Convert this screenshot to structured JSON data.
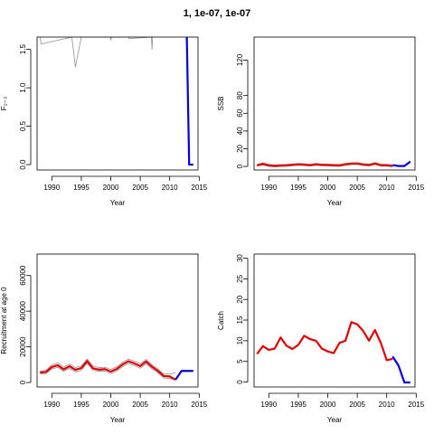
{
  "title": "1, 1e-07, 1e-07",
  "colors": {
    "estimate": "#e00000",
    "projection": "#0000e0",
    "bands": "#909090"
  },
  "chart_data": [
    {
      "id": "F",
      "type": "line",
      "xlabel": "Year",
      "ylabel": "F₂₋₃",
      "xlim": [
        1987.5,
        2014.8
      ],
      "ylim": [
        -0.07,
        1.66
      ],
      "xticks": [
        1990,
        1995,
        2000,
        2005,
        2010,
        2015
      ],
      "yticks": [
        0.0,
        0.5,
        1.0,
        1.5
      ],
      "ytick_labels": [
        "0.0",
        "0.5",
        "1.0",
        "1.5"
      ],
      "series": [
        {
          "role": "band-upper",
          "x": [
            1988,
            1988.2,
            1993.4,
            1994,
            1995,
            1999.9,
            2000,
            2000.2,
            2003,
            2003.1,
            2006.9,
            2007,
            2007.1
          ],
          "y": [
            1.66,
            1.57,
            1.66,
            1.27,
            1.66,
            1.66,
            1.62,
            1.66,
            1.66,
            1.64,
            1.66,
            1.5,
            1.66
          ]
        },
        {
          "role": "projection",
          "x": [
            2012.9,
            2013.3,
            2014
          ],
          "y": [
            1.66,
            0.0,
            0.0
          ]
        }
      ]
    },
    {
      "id": "SSB",
      "type": "line",
      "xlabel": "Year",
      "ylabel": "SSB",
      "xlim": [
        1987.5,
        2014.8
      ],
      "ylim": [
        -4,
        146
      ],
      "xticks": [
        1990,
        1995,
        2000,
        2005,
        2010,
        2015
      ],
      "yticks": [
        0,
        20,
        40,
        60,
        80,
        120
      ],
      "ytick_labels": [
        "0",
        "20",
        "40",
        "60",
        "80",
        "120"
      ],
      "series": [
        {
          "role": "band-upper",
          "x": [
            1988,
            1989,
            1990,
            1991,
            1992,
            1993,
            1994,
            1995,
            1996,
            1997,
            1998,
            1999,
            2000,
            2001,
            2002,
            2003,
            2004,
            2005,
            2006,
            2007,
            2008,
            2009,
            2010,
            2011
          ],
          "y": [
            2.3,
            4,
            2.3,
            1.6,
            2,
            2.2,
            2.8,
            3.4,
            3,
            2.4,
            3.4,
            2.8,
            2.6,
            2.3,
            2.1,
            3.4,
            4.1,
            4.3,
            3.1,
            2.6,
            4.3,
            2.4,
            2.3,
            1.6
          ]
        },
        {
          "role": "band-lower",
          "x": [
            1988,
            1989,
            1990,
            1991,
            1992,
            1993,
            1994,
            1995,
            1996,
            1997,
            1998,
            1999,
            2000,
            2001,
            2002,
            2003,
            2004,
            2005,
            2006,
            2007,
            2008,
            2009,
            2010,
            2011
          ],
          "y": [
            0.3,
            1.5,
            0.1,
            -0.4,
            0,
            0.2,
            0.8,
            1.4,
            1,
            0.4,
            1.4,
            0.8,
            0.6,
            0.3,
            0.1,
            1.4,
            2.1,
            2.3,
            1.1,
            0.6,
            2.3,
            0.4,
            0.3,
            -0.4
          ]
        },
        {
          "role": "estimate",
          "x": [
            1988,
            1989,
            1990,
            1991,
            1992,
            1993,
            1994,
            1995,
            1996,
            1997,
            1998,
            1999,
            2000,
            2001,
            2002,
            2003,
            2004,
            2005,
            2006,
            2007,
            2008,
            2009,
            2010,
            2011
          ],
          "y": [
            1.3,
            2.8,
            1.1,
            0.6,
            1,
            1.2,
            1.8,
            2.4,
            2,
            1.4,
            2.4,
            1.8,
            1.6,
            1.3,
            1.1,
            2.4,
            3.1,
            3.3,
            2.1,
            1.6,
            3.3,
            1.4,
            1.3,
            0.6
          ]
        },
        {
          "role": "projection",
          "x": [
            2011,
            2012,
            2013,
            2014
          ],
          "y": [
            1.5,
            0.5,
            0.5,
            5.5
          ]
        }
      ]
    },
    {
      "id": "Recruitment",
      "type": "line",
      "xlabel": "Year",
      "ylabel": "Recruitment at age 0",
      "xlim": [
        1987.5,
        2014.8
      ],
      "ylim": [
        -2500,
        72000
      ],
      "xticks": [
        1990,
        1995,
        2000,
        2005,
        2010,
        2015
      ],
      "yticks": [
        0,
        20000,
        40000,
        60000
      ],
      "ytick_labels": [
        "0",
        "20000",
        "40000",
        "60000"
      ],
      "series": [
        {
          "role": "band-upper",
          "x": [
            1988,
            1989,
            1990,
            1991,
            1992,
            1993,
            1994,
            1995,
            1996,
            1997,
            1998,
            1999,
            2000,
            2001,
            2002,
            2003,
            2004,
            2005,
            2006,
            2007,
            2008,
            2009,
            2010,
            2011
          ],
          "y": [
            6400,
            6800,
            10000,
            11000,
            8600,
            10300,
            8400,
            9300,
            13200,
            9200,
            8300,
            8600,
            7300,
            8800,
            11300,
            13100,
            12000,
            10500,
            13000,
            10000,
            7600,
            4700,
            4600,
            5600
          ]
        },
        {
          "role": "band-lower",
          "x": [
            1988,
            1989,
            1990,
            1991,
            1992,
            1993,
            1994,
            1995,
            1996,
            1997,
            1998,
            1999,
            2000,
            2001,
            2002,
            2003,
            2004,
            2005,
            2006,
            2007,
            2008,
            2009,
            2010,
            2011
          ],
          "y": [
            4900,
            5000,
            7600,
            8500,
            6300,
            7900,
            5900,
            6900,
            10800,
            6800,
            6200,
            6400,
            5000,
            6400,
            8900,
            10700,
            9500,
            8000,
            10600,
            7600,
            5500,
            2600,
            2300,
            1300
          ]
        },
        {
          "role": "estimate",
          "x": [
            1988,
            1989,
            1990,
            1991,
            1992,
            1993,
            1994,
            1995,
            1996,
            1997,
            1998,
            1999,
            2000,
            2001,
            2002,
            2003,
            2004,
            2005,
            2006,
            2007,
            2008,
            2009,
            2010,
            2011
          ],
          "y": [
            5600,
            5900,
            8700,
            9700,
            7400,
            9100,
            7100,
            8100,
            12000,
            7900,
            7200,
            7500,
            6100,
            7600,
            10100,
            11900,
            10700,
            9200,
            11800,
            8800,
            6500,
            3600,
            3400,
            1600
          ]
        },
        {
          "role": "projection",
          "x": [
            2011,
            2012,
            2013,
            2014
          ],
          "y": [
            1600,
            6500,
            6500,
            6500
          ]
        }
      ]
    },
    {
      "id": "Catch",
      "type": "line",
      "xlabel": "Year",
      "ylabel": "Catch",
      "xlim": [
        1987.5,
        2014.8
      ],
      "ylim": [
        -1.2,
        31
      ],
      "xticks": [
        1990,
        1995,
        2000,
        2005,
        2010,
        2015
      ],
      "yticks": [
        0,
        5,
        10,
        15,
        20,
        25,
        30
      ],
      "ytick_labels": [
        "0",
        "5",
        "10",
        "15",
        "20",
        "25",
        "30"
      ],
      "series": [
        {
          "role": "estimate",
          "x": [
            1988,
            1989,
            1990,
            1991,
            1992,
            1993,
            1994,
            1995,
            1996,
            1997,
            1998,
            1999,
            2000,
            2001,
            2002,
            2003,
            2004,
            2005,
            2006,
            2007,
            2008,
            2009,
            2010,
            2011
          ],
          "y": [
            6.8,
            8.7,
            7.8,
            8.1,
            10.8,
            8.8,
            8,
            9,
            11.2,
            10.4,
            10,
            8.1,
            7.4,
            7,
            9.5,
            10,
            14.5,
            14,
            12.4,
            10,
            12.6,
            9.5,
            5.3,
            5.6
          ]
        },
        {
          "role": "projection",
          "x": [
            2011,
            2012,
            2013,
            2014
          ],
          "y": [
            6.2,
            4,
            -0.1,
            -0.1
          ]
        }
      ]
    }
  ]
}
